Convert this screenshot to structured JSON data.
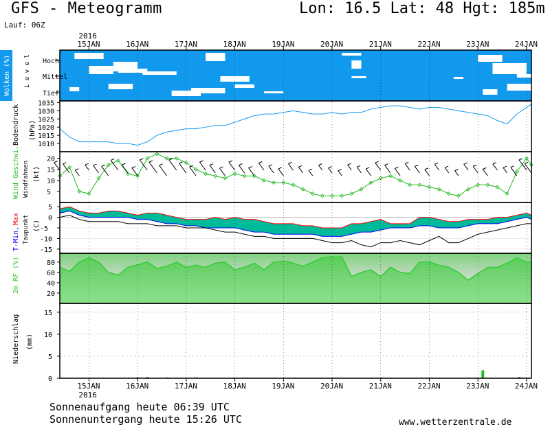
{
  "header": {
    "title": "GFS - Meteogramm",
    "coords": "Lon: 16.5 Lat: 48 Hgt: 185m",
    "run": "Lauf: 06Z"
  },
  "footer": {
    "sunrise": "Sonnenaufgang heute 06:39 UTC",
    "sunset": "Sonnenuntergang heute 15:26 UTC",
    "url": "www.wetterzentrale.de"
  },
  "colors": {
    "clouds_bg": "#1199ee",
    "clouds_fill": "#ffffff",
    "pressure_line": "#1199ee",
    "wind_line": "#22bb22",
    "tmin_label": "#0000ff",
    "tmax_label": "#ff0000",
    "temp_fill": "#00bb99",
    "temp_top": "#22cc22",
    "humidity_fill": "#33cc33",
    "precip_bar": "#22bb22"
  },
  "chart_data": [
    {
      "type": "heatmap",
      "panel": "clouds",
      "ylabel": "Wolken (%)",
      "ylabel2": "L e v e l",
      "levels": [
        "Hoch",
        "Mittel",
        "Tief"
      ],
      "x_dates": [
        "15JAN",
        "16JAN",
        "17JAN",
        "18JAN",
        "19JAN",
        "20JAN",
        "21JAN",
        "22JAN",
        "23JAN",
        "24JAN"
      ],
      "year": "2016",
      "xlim_days": [
        14.4,
        24.1
      ]
    },
    {
      "type": "line",
      "panel": "pressure",
      "ylabel": "Bodendruck",
      "unit": "(hPa)",
      "yticks": [
        1010,
        1015,
        1020,
        1025,
        1030,
        1035
      ],
      "ylim": [
        1005,
        1036
      ],
      "x_days": [
        14.4,
        14.6,
        14.8,
        15.0,
        15.2,
        15.4,
        15.6,
        15.8,
        16.0,
        16.2,
        16.4,
        16.6,
        16.8,
        17.0,
        17.2,
        17.4,
        17.6,
        17.8,
        18.0,
        18.2,
        18.4,
        18.6,
        18.8,
        19.0,
        19.2,
        19.4,
        19.6,
        19.8,
        20.0,
        20.2,
        20.4,
        20.6,
        20.8,
        21.0,
        21.2,
        21.4,
        21.6,
        21.8,
        22.0,
        22.2,
        22.4,
        22.6,
        22.8,
        23.0,
        23.2,
        23.4,
        23.6,
        23.8,
        24.0,
        24.1
      ],
      "values": [
        1019,
        1014,
        1011,
        1011,
        1011,
        1011,
        1010,
        1010,
        1009,
        1011,
        1015,
        1017,
        1018,
        1019,
        1019,
        1020,
        1021,
        1021,
        1023,
        1025,
        1027,
        1028,
        1028,
        1029,
        1030,
        1029,
        1028,
        1028,
        1029,
        1028,
        1029,
        1029,
        1031,
        1032,
        1033,
        1033,
        1032,
        1031,
        1032,
        1032,
        1031,
        1030,
        1029,
        1028,
        1027,
        1024,
        1022,
        1028,
        1032,
        1034
      ]
    },
    {
      "type": "line",
      "panel": "wind",
      "ylabel": "Wind Geschwi.",
      "ylabel2": "Windfahnen",
      "unit": "(kt)",
      "yticks": [
        5,
        10,
        15,
        20
      ],
      "ylim": [
        0,
        23
      ],
      "x_days": [
        14.4,
        14.6,
        14.8,
        15.0,
        15.2,
        15.4,
        15.6,
        15.8,
        16.0,
        16.2,
        16.4,
        16.6,
        16.8,
        17.0,
        17.2,
        17.4,
        17.6,
        17.8,
        18.0,
        18.2,
        18.4,
        18.6,
        18.8,
        19.0,
        19.2,
        19.4,
        19.6,
        19.8,
        20.0,
        20.2,
        20.4,
        20.6,
        20.8,
        21.0,
        21.2,
        21.4,
        21.6,
        21.8,
        22.0,
        22.2,
        22.4,
        22.6,
        22.8,
        23.0,
        23.2,
        23.4,
        23.6,
        23.8,
        24.0,
        24.1
      ],
      "values": [
        12,
        16,
        5,
        4,
        11,
        17,
        19,
        13,
        12,
        20,
        22,
        20,
        20,
        18,
        15,
        13,
        12,
        11,
        13,
        12,
        12,
        10,
        9,
        9,
        8,
        6,
        4,
        3,
        3,
        3,
        4,
        6,
        9,
        11,
        12,
        10,
        8,
        8,
        7,
        6,
        4,
        3,
        6,
        8,
        8,
        7,
        4,
        14,
        20,
        17
      ]
    },
    {
      "type": "area",
      "panel": "temperature",
      "ylabel_tmin": "T-Min,",
      "ylabel_tmax": "Max",
      "ylabel2": "Taupunkt",
      "unit": "(C)",
      "yticks": [
        5,
        0,
        -5,
        -10,
        -15
      ],
      "ylim": [
        -17,
        7
      ],
      "x_days": [
        14.4,
        14.6,
        14.8,
        15.0,
        15.2,
        15.4,
        15.6,
        15.8,
        16.0,
        16.2,
        16.4,
        16.6,
        16.8,
        17.0,
        17.2,
        17.4,
        17.6,
        17.8,
        18.0,
        18.2,
        18.4,
        18.6,
        18.8,
        19.0,
        19.2,
        19.4,
        19.6,
        19.8,
        20.0,
        20.2,
        20.4,
        20.6,
        20.8,
        21.0,
        21.2,
        21.4,
        21.6,
        21.8,
        22.0,
        22.2,
        22.4,
        22.6,
        22.8,
        23.0,
        23.2,
        23.4,
        23.6,
        23.8,
        24.0,
        24.1
      ],
      "tmax": [
        4,
        5,
        3,
        2,
        2,
        3,
        3,
        2,
        1,
        2,
        2,
        1,
        0,
        -1,
        -1,
        -1,
        0,
        -1,
        0,
        -1,
        -1,
        -2,
        -3,
        -3,
        -3,
        -4,
        -4,
        -5,
        -5,
        -5,
        -3,
        -3,
        -2,
        -1,
        -3,
        -3,
        -3,
        0,
        0,
        -1,
        -2,
        -2,
        -1,
        -1,
        -1,
        0,
        0,
        1,
        2,
        1
      ],
      "tmin": [
        2,
        3,
        1,
        0,
        0,
        0,
        0,
        0,
        -1,
        -1,
        -2,
        -3,
        -3,
        -4,
        -4,
        -5,
        -5,
        -5,
        -5,
        -6,
        -7,
        -7,
        -8,
        -8,
        -8,
        -8,
        -8,
        -9,
        -9,
        -9,
        -8,
        -7,
        -7,
        -6,
        -5,
        -5,
        -5,
        -4,
        -4,
        -5,
        -5,
        -5,
        -4,
        -3,
        -3,
        -3,
        -2,
        -1,
        0,
        -1
      ],
      "dewpoint": [
        0,
        1,
        -1,
        -2,
        -2,
        -2,
        -2,
        -3,
        -3,
        -3,
        -4,
        -4,
        -4,
        -5,
        -5,
        -5,
        -6,
        -7,
        -7,
        -8,
        -9,
        -9,
        -10,
        -10,
        -10,
        -10,
        -10,
        -11,
        -12,
        -12,
        -11,
        -13,
        -14,
        -12,
        -12,
        -11,
        -12,
        -13,
        -11,
        -9,
        -12,
        -12,
        -10,
        -8,
        -7,
        -6,
        -5,
        -4,
        -3,
        -3
      ]
    },
    {
      "type": "area",
      "panel": "humidity",
      "ylabel": "2m RF (%)",
      "yticks": [
        20,
        40,
        60,
        80
      ],
      "ylim": [
        0,
        97
      ],
      "x_days": [
        14.4,
        14.6,
        14.8,
        15.0,
        15.2,
        15.4,
        15.6,
        15.8,
        16.0,
        16.2,
        16.4,
        16.6,
        16.8,
        17.0,
        17.2,
        17.4,
        17.6,
        17.8,
        18.0,
        18.2,
        18.4,
        18.6,
        18.8,
        19.0,
        19.2,
        19.4,
        19.6,
        19.8,
        20.0,
        20.2,
        20.4,
        20.6,
        20.8,
        21.0,
        21.2,
        21.4,
        21.6,
        21.8,
        22.0,
        22.2,
        22.4,
        22.6,
        22.8,
        23.0,
        23.2,
        23.4,
        23.6,
        23.8,
        24.0,
        24.1
      ],
      "values": [
        70,
        62,
        80,
        88,
        80,
        60,
        55,
        70,
        75,
        80,
        68,
        72,
        80,
        70,
        74,
        70,
        78,
        80,
        65,
        70,
        78,
        65,
        80,
        82,
        78,
        72,
        80,
        88,
        90,
        90,
        52,
        60,
        65,
        52,
        70,
        60,
        58,
        80,
        80,
        74,
        70,
        60,
        45,
        58,
        70,
        70,
        78,
        88,
        80,
        80
      ]
    },
    {
      "type": "bar",
      "panel": "precipitation",
      "ylabel": "Niederschlag",
      "unit": "(mm)",
      "yticks": [
        0,
        5,
        10,
        15
      ],
      "ylim": [
        0,
        17
      ],
      "x_days": [
        16.0,
        16.2,
        16.6,
        17.2,
        23.1,
        23.85
      ],
      "values": [
        0.2,
        0.3,
        0.2,
        0.2,
        1.8,
        0.3
      ]
    }
  ]
}
